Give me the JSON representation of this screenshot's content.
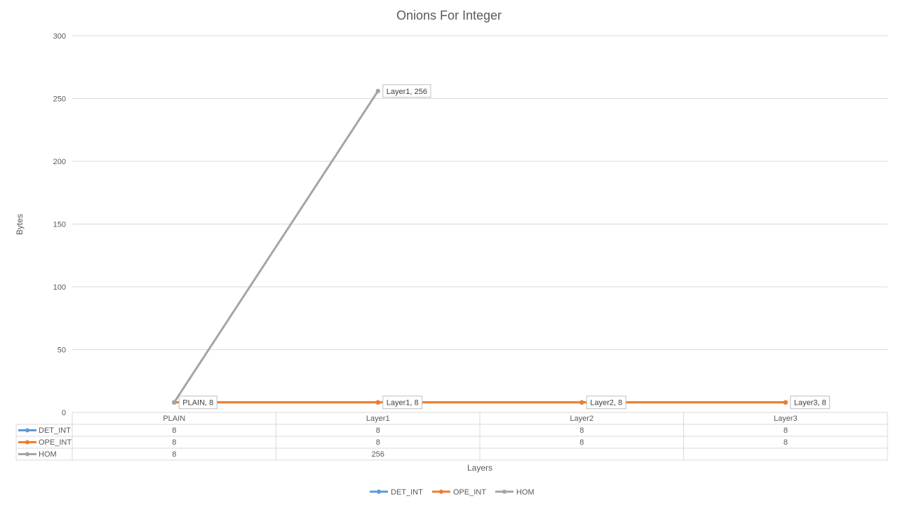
{
  "chart_data": {
    "type": "line",
    "title": "Onions For Integer",
    "xlabel": "Layers",
    "ylabel": "Bytes",
    "ylim": [
      0,
      300
    ],
    "yticks": [
      0,
      50,
      100,
      150,
      200,
      250,
      300
    ],
    "categories": [
      "PLAIN",
      "Layer1",
      "Layer2",
      "Layer3"
    ],
    "grid": true,
    "legend": "bottom",
    "data_table": true,
    "series": [
      {
        "name": "DET_INT",
        "color": "#5B9BD5",
        "values": [
          8,
          8,
          8,
          8
        ]
      },
      {
        "name": "OPE_INT",
        "color": "#ED7D31",
        "values": [
          8,
          8,
          8,
          8
        ]
      },
      {
        "name": "HOM",
        "color": "#A5A5A5",
        "values": [
          8,
          256,
          null,
          null
        ]
      }
    ],
    "data_labels": [
      {
        "text": "PLAIN, 8",
        "category": 0,
        "value": 8
      },
      {
        "text": "Layer1, 256",
        "category": 1,
        "value": 256
      },
      {
        "text": "Layer1, 8",
        "category": 1,
        "value": 8
      },
      {
        "text": "Layer2, 8",
        "category": 2,
        "value": 8
      },
      {
        "text": "Layer3, 8",
        "category": 3,
        "value": 8
      }
    ]
  }
}
